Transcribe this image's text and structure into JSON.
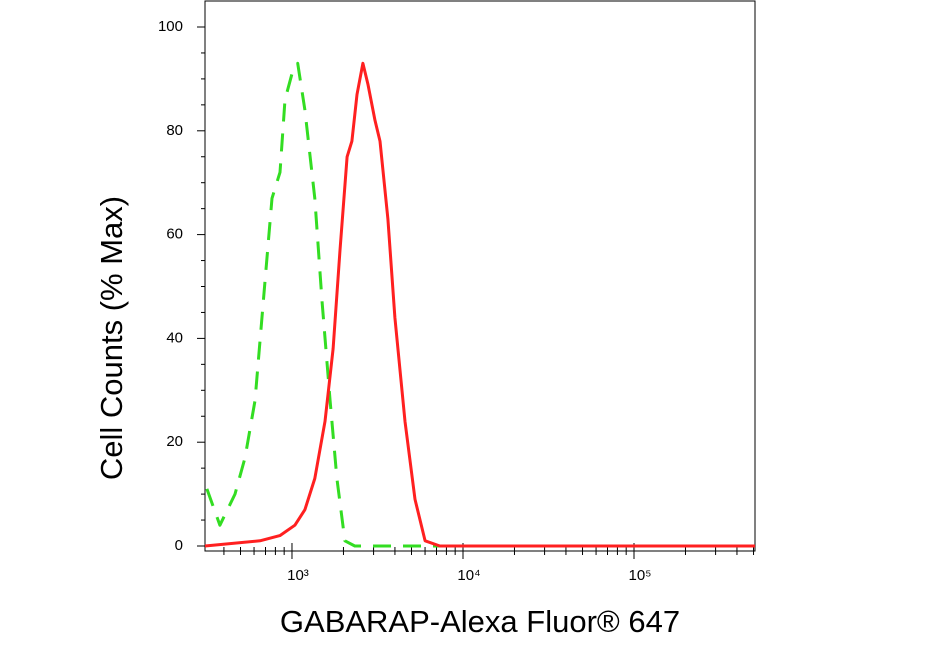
{
  "chart_data": {
    "type": "line",
    "x_label": "GABARAP-Alexa Fluor® 647",
    "y_label": "Cell Counts (% Max)",
    "xlog": true,
    "xlim": [
      310,
      510000
    ],
    "ylim": [
      0,
      100
    ],
    "xticks": [
      {
        "value": 1000,
        "label": "10³"
      },
      {
        "value": 10000,
        "label": "10⁴"
      },
      {
        "value": 100000,
        "label": "10⁵"
      }
    ],
    "xminorticks": [
      400,
      500,
      600,
      700,
      800,
      900,
      2000,
      3000,
      4000,
      5000,
      6000,
      7000,
      8000,
      9000,
      20000,
      30000,
      40000,
      50000,
      60000,
      70000,
      80000,
      90000,
      200000,
      300000,
      400000,
      500000
    ],
    "yticks": [
      0,
      20,
      40,
      60,
      80,
      100
    ],
    "yminorticks": [
      5,
      10,
      15,
      25,
      30,
      35,
      45,
      50,
      55,
      65,
      70,
      75,
      85,
      90,
      95
    ],
    "series": [
      {
        "color": "#33dd22",
        "dashed": true,
        "x": [
          318,
          379,
          464,
          531,
          608,
          695,
          764,
          851,
          910,
          1000,
          1080,
          1190,
          1360,
          1500,
          1670,
          1830,
          2040,
          2330,
          510000
        ],
        "values": [
          11,
          4,
          10,
          17,
          28,
          51,
          67,
          72,
          86,
          91,
          93,
          84,
          67,
          47,
          28,
          13,
          1,
          0,
          0
        ]
      },
      {
        "color": "#ff2020",
        "dashed": false,
        "x": [
          310,
          650,
          850,
          1040,
          1190,
          1360,
          1560,
          1740,
          1910,
          2100,
          2240,
          2400,
          2600,
          2780,
          3060,
          3270,
          3640,
          4000,
          4580,
          5240,
          6000,
          7330,
          510000
        ],
        "values": [
          0,
          1,
          2,
          4,
          7,
          13,
          24,
          38,
          57,
          75,
          78,
          87,
          93,
          89,
          82,
          78,
          63,
          44,
          24,
          9,
          1,
          0,
          0
        ]
      }
    ]
  }
}
